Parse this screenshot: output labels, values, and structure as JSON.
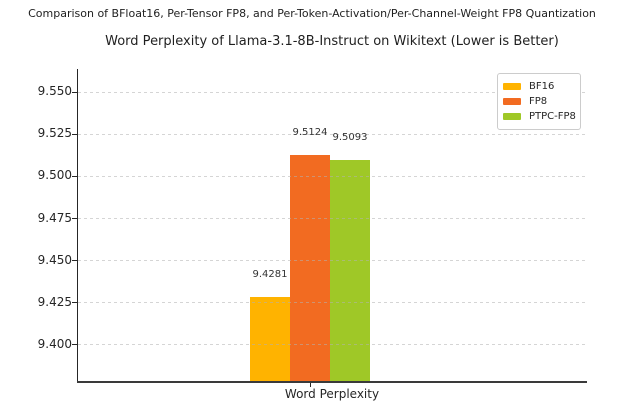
{
  "chart_data": {
    "type": "bar",
    "suptitle": "Comparison of BFloat16, Per-Tensor FP8, and Per-Token-Activation/Per-Channel-Weight FP8 Quantization",
    "title": "Word Perplexity of Llama-3.1-8B-Instruct on Wikitext (Lower is Better)",
    "xlabel": "Word Perplexity",
    "ylabel": "",
    "categories": [
      "Word Perplexity"
    ],
    "series": [
      {
        "name": "BF16",
        "value": 9.4281,
        "label": "9.4281",
        "color": "#FFB300"
      },
      {
        "name": "FP8",
        "value": 9.5124,
        "label": "9.5124",
        "color": "#F26B21"
      },
      {
        "name": "PTPC-FP8",
        "value": 9.5093,
        "label": "9.5093",
        "color": "#9FC827"
      }
    ],
    "yticks": [
      9.4,
      9.425,
      9.45,
      9.475,
      9.5,
      9.525,
      9.55
    ],
    "ylim": [
      9.3769,
      9.5636
    ],
    "grid": true,
    "grid_color": "#b2b2b2",
    "legend_position": "upper right",
    "legend_items": [
      "BF16",
      "FP8",
      "PTPC-FP8"
    ]
  }
}
